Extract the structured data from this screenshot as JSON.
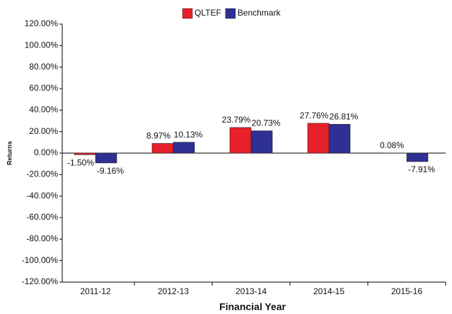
{
  "chart_data": {
    "type": "bar",
    "x_label": "Financial Year",
    "y_label": "Returns",
    "categories": [
      "2011-12",
      "2012-13",
      "2013-14",
      "2014-15",
      "2015-16"
    ],
    "series": [
      {
        "name": "QLTEF",
        "color": "#e8202a",
        "values": [
          -1.5,
          8.97,
          23.79,
          27.76,
          0.08
        ],
        "value_labels": [
          "-1.50%",
          "8.97%",
          "23.79%",
          "27.76%",
          "0.08%"
        ]
      },
      {
        "name": "Benchmark",
        "color": "#2e3192",
        "values": [
          -9.16,
          10.13,
          20.73,
          26.81,
          -7.91
        ],
        "value_labels": [
          "-9.16%",
          "10.13%",
          "20.73%",
          "26.81%",
          "-7.91%"
        ]
      }
    ],
    "ylim": [
      -120,
      120
    ],
    "yticks": [
      {
        "value": -120,
        "label": "-120.00%"
      },
      {
        "value": -100,
        "label": "-100.00%"
      },
      {
        "value": -80,
        "label": "-80.00%"
      },
      {
        "value": -60,
        "label": "-60.00%"
      },
      {
        "value": -40,
        "label": "-40.00%"
      },
      {
        "value": -20,
        "label": "-20.00%"
      },
      {
        "value": 0,
        "label": "0.00%"
      },
      {
        "value": 20,
        "label": "20.00%"
      },
      {
        "value": 40,
        "label": "40.00%"
      },
      {
        "value": 60,
        "label": "60.00%"
      },
      {
        "value": 80,
        "label": "80.00%"
      },
      {
        "value": 100,
        "label": "100.00%"
      },
      {
        "value": 120,
        "label": "120.00%"
      }
    ],
    "legend": "top"
  }
}
